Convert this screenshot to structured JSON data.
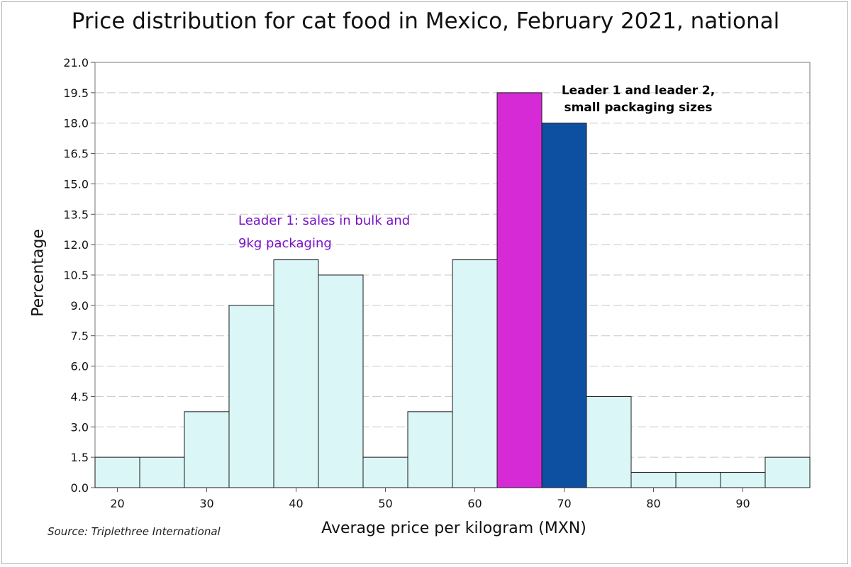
{
  "chart_data": {
    "type": "bar",
    "title": "Price distribution for cat food in Mexico, February 2021, national",
    "xlabel": "Average price per kilogram (MXN)",
    "ylabel": "Percentage",
    "source": "Source: Triplethree International",
    "xlim": [
      17.5,
      97.5
    ],
    "ylim": [
      0,
      21
    ],
    "bin_width": 5,
    "bins": [
      {
        "center": 20,
        "value": 1.5,
        "highlight": "none"
      },
      {
        "center": 25,
        "value": 1.5,
        "highlight": "none"
      },
      {
        "center": 30,
        "value": 3.75,
        "highlight": "none"
      },
      {
        "center": 35,
        "value": 9.0,
        "highlight": "none"
      },
      {
        "center": 40,
        "value": 11.25,
        "highlight": "none"
      },
      {
        "center": 45,
        "value": 10.5,
        "highlight": "none"
      },
      {
        "center": 50,
        "value": 1.5,
        "highlight": "none"
      },
      {
        "center": 55,
        "value": 3.75,
        "highlight": "none"
      },
      {
        "center": 60,
        "value": 11.25,
        "highlight": "none"
      },
      {
        "center": 65,
        "value": 19.5,
        "highlight": "leader1"
      },
      {
        "center": 70,
        "value": 18.0,
        "highlight": "leader2"
      },
      {
        "center": 75,
        "value": 4.5,
        "highlight": "none"
      },
      {
        "center": 80,
        "value": 0.75,
        "highlight": "none"
      },
      {
        "center": 85,
        "value": 0.75,
        "highlight": "none"
      },
      {
        "center": 90,
        "value": 0.75,
        "highlight": "none"
      },
      {
        "center": 95,
        "value": 1.5,
        "highlight": "none"
      }
    ],
    "yticks": [
      "0.0",
      "1.5",
      "3.0",
      "4.5",
      "6.0",
      "7.5",
      "9.0",
      "10.5",
      "12.0",
      "13.5",
      "15.0",
      "16.5",
      "18.0",
      "19.5",
      "21.0"
    ],
    "xticks": [
      20,
      30,
      40,
      50,
      60,
      70,
      80,
      90
    ],
    "grid": "horizontal-dashed",
    "colors": {
      "default_bar": "#dbf6f6",
      "leader1": "#d62ad6",
      "leader2": "#0d4fa0",
      "grid": "#c8c8c8",
      "annotation_purple": "#7a12c8"
    },
    "annotations": [
      {
        "lines": [
          "Leader 1: sales in bulk and",
          "9kg packaging"
        ],
        "color": "#7a12c8"
      },
      {
        "lines": [
          "Leader 1 and leader 2,",
          "small packaging sizes"
        ],
        "color": "#000000"
      }
    ]
  }
}
